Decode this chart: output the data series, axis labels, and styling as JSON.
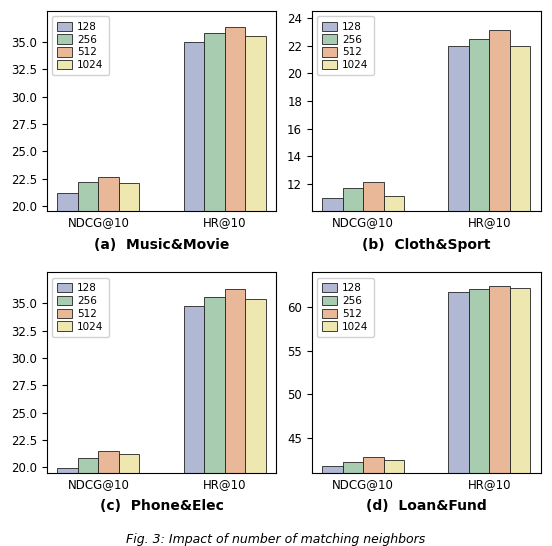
{
  "subplots": [
    {
      "title": "(a)  Music&Movie",
      "categories": [
        "NDCG@10",
        "HR@10"
      ],
      "series": {
        "128": [
          21.2,
          34.95
        ],
        "256": [
          22.2,
          35.8
        ],
        "512": [
          22.65,
          36.35
        ],
        "1024": [
          22.1,
          35.5
        ]
      },
      "ylim": [
        19.5,
        37.8
      ],
      "yticks": [
        20.0,
        22.5,
        25.0,
        27.5,
        30.0,
        32.5,
        35.0
      ]
    },
    {
      "title": "(b)  Cloth&Sport",
      "categories": [
        "NDCG@10",
        "HR@10"
      ],
      "series": {
        "128": [
          11.0,
          22.0
        ],
        "256": [
          11.7,
          22.5
        ],
        "512": [
          12.15,
          23.1
        ],
        "1024": [
          11.15,
          22.0
        ]
      },
      "ylim": [
        10.0,
        24.5
      ],
      "yticks": [
        12,
        14,
        16,
        18,
        20,
        22,
        24
      ]
    },
    {
      "title": "(c)  Phone&Elec",
      "categories": [
        "NDCG@10",
        "HR@10"
      ],
      "series": {
        "128": [
          19.95,
          34.7
        ],
        "256": [
          20.9,
          35.6
        ],
        "512": [
          21.5,
          36.3
        ],
        "1024": [
          21.2,
          35.4
        ]
      },
      "ylim": [
        19.5,
        37.8
      ],
      "yticks": [
        20.0,
        22.5,
        25.0,
        27.5,
        30.0,
        32.5,
        35.0
      ]
    },
    {
      "title": "(d)  Loan&Fund",
      "categories": [
        "NDCG@10",
        "HR@10"
      ],
      "series": {
        "128": [
          41.8,
          61.8
        ],
        "256": [
          42.3,
          62.1
        ],
        "512": [
          42.8,
          62.5
        ],
        "1024": [
          42.5,
          62.2
        ]
      },
      "ylim": [
        41.0,
        64.0
      ],
      "yticks": [
        45,
        50,
        55,
        60
      ]
    }
  ],
  "series_labels": [
    "128",
    "256",
    "512",
    "1024"
  ],
  "bar_colors": [
    "#b0b8d4",
    "#a8ccb0",
    "#e8b898",
    "#eee8b0"
  ],
  "bar_edge_color": "#222222",
  "caption": "Fig. 3: Impact of number of matching neighbors",
  "figsize": [
    5.52,
    5.46
  ],
  "dpi": 100
}
